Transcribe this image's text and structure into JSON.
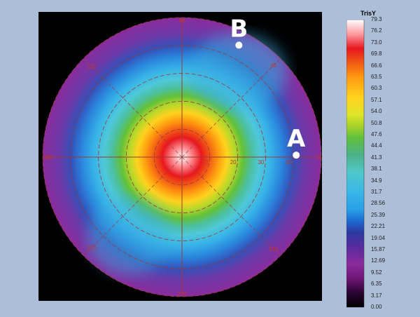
{
  "chart_data": {
    "type": "heatmap",
    "subtype": "polar-conoscopic",
    "colorbar": {
      "title": "TrisY",
      "ticks": [
        "79.3",
        "76.2",
        "73.0",
        "69.8",
        "66.6",
        "63.5",
        "60.3",
        "57.1",
        "54.0",
        "50.8",
        "47.6",
        "44.4",
        "41.3",
        "38.1",
        "34.9",
        "31.7",
        "28.56",
        "25.39",
        "22.21",
        "19.04",
        "15.87",
        "12.69",
        "9.52",
        "6.35",
        "3.17",
        "0.00"
      ],
      "min": 0.0,
      "max": 79.3,
      "colors": [
        "#ffffff",
        "#ff9aa0",
        "#e8171f",
        "#f05a14",
        "#ff9a10",
        "#ffd21e",
        "#e0e42a",
        "#a8d22a",
        "#62c13a",
        "#4cb088",
        "#50c8c8",
        "#3ab6e8",
        "#2aa0e8",
        "#1c6ad2",
        "#2b3aa0",
        "#5a2a9e",
        "#8a2c9c",
        "#6e1676",
        "#2a0430",
        "#000000"
      ]
    },
    "angle_labels": [
      "90",
      "45",
      "0",
      "315",
      "270",
      "225",
      "180",
      "135"
    ],
    "radial_labels": [
      "10",
      "20",
      "30",
      "40",
      "50"
    ],
    "rlim": [
      0,
      50
    ],
    "grid": true,
    "markers": [
      {
        "label": "B",
        "theta_deg": 63,
        "r": 45
      },
      {
        "label": "A",
        "theta_deg": 1,
        "r": 41
      }
    ]
  },
  "colors": {
    "background": "#adbfd8",
    "plot_background": "#000000",
    "grid": "#a03838"
  }
}
